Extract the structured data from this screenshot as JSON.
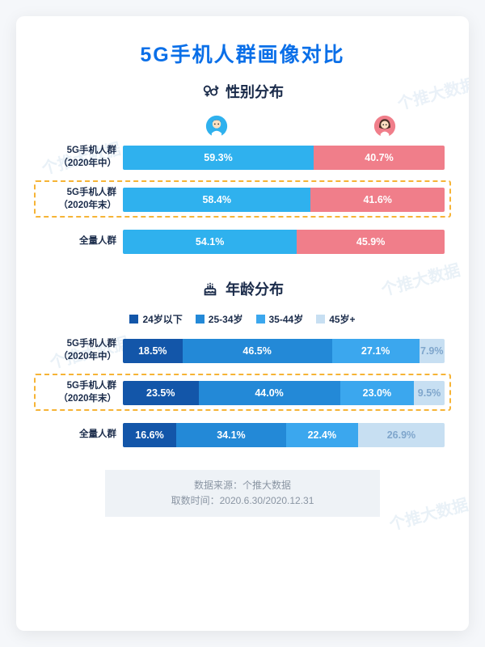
{
  "title": "5G手机人群画像对比",
  "watermark_text": "个推大数据",
  "colors": {
    "title": "#0a6fe8",
    "text_dark": "#1a2b4a",
    "male": "#2fb1ee",
    "female": "#f07e8a",
    "age1": "#1356a9",
    "age2": "#2389d7",
    "age3": "#3ba7ee",
    "age4": "#c7dff2",
    "highlight_border": "#f6b436",
    "source_bg": "#eef2f6",
    "source_text": "#8a95a3"
  },
  "gender": {
    "section_title": "性别分布",
    "rows": [
      {
        "label_l1": "5G手机人群",
        "label_l2": "（2020年中）",
        "male": 59.3,
        "female": 40.7
      },
      {
        "label_l1": "5G手机人群",
        "label_l2": "（2020年末）",
        "male": 58.4,
        "female": 41.6
      },
      {
        "label_l1": "全量人群",
        "label_l2": "",
        "male": 54.1,
        "female": 45.9
      }
    ],
    "highlight_index": 1
  },
  "age": {
    "section_title": "年龄分布",
    "legend": [
      "24岁以下",
      "25-34岁",
      "35-44岁",
      "45岁+"
    ],
    "rows": [
      {
        "label_l1": "5G手机人群",
        "label_l2": "（2020年中）",
        "v": [
          18.5,
          46.5,
          27.1,
          7.9
        ]
      },
      {
        "label_l1": "5G手机人群",
        "label_l2": "（2020年末）",
        "v": [
          23.5,
          44.0,
          23.0,
          9.5
        ]
      },
      {
        "label_l1": "全量人群",
        "label_l2": "",
        "v": [
          16.6,
          34.1,
          22.4,
          26.9
        ]
      }
    ],
    "highlight_index": 1
  },
  "source": {
    "line1": "数据来源：个推大数据",
    "line2": "取数时间：2020.6.30/2020.12.31"
  }
}
